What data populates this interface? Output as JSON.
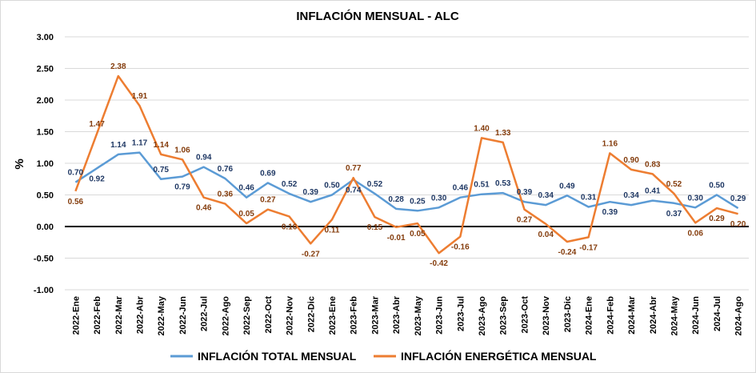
{
  "chart_data": {
    "type": "line",
    "title": "INFLACIÓN MENSUAL - ALC",
    "ylabel": "%",
    "xlabel": "",
    "ylim": [
      -1.0,
      3.0
    ],
    "yticks": [
      "-1.00",
      "-0.50",
      "0.00",
      "0.50",
      "1.00",
      "1.50",
      "2.00",
      "2.50",
      "3.00"
    ],
    "grid": true,
    "legend": "bottom",
    "categories": [
      "2022-Ene",
      "2022-Feb",
      "2022-Mar",
      "2022-Abr",
      "2022-May",
      "2022-Jun",
      "2022-Jul",
      "2022-Ago",
      "2022-Sep",
      "2022-Oct",
      "2022-Nov",
      "2022-Dic",
      "2023-Ene",
      "2023-Feb",
      "2023-Mar",
      "2023-Abr",
      "2023-May",
      "2023-Jun",
      "2023-Jul",
      "2023-Ago",
      "2023-Sep",
      "2023-Oct",
      "2023-Nov",
      "2023-Dic",
      "2024-Ene",
      "2024-Feb",
      "2024-Mar",
      "2024-Abr",
      "2024-May",
      "2024-Jun",
      "2024-Jul",
      "2024-Ago"
    ],
    "series": [
      {
        "name": "INFLACIÓN TOTAL MENSUAL",
        "color": "#5b9bd5",
        "label_color": "#1f3864",
        "values": [
          0.7,
          0.92,
          1.14,
          1.17,
          0.75,
          0.79,
          0.94,
          0.76,
          0.46,
          0.69,
          0.52,
          0.39,
          0.5,
          0.74,
          0.52,
          0.28,
          0.25,
          0.3,
          0.46,
          0.51,
          0.53,
          0.39,
          0.34,
          0.49,
          0.31,
          0.39,
          0.34,
          0.41,
          0.37,
          0.3,
          0.5,
          0.29
        ],
        "labels": [
          "0.70",
          "0.92",
          "1.14",
          "1.17",
          "0.75",
          "0.79",
          "0.94",
          "0.76",
          "0.46",
          "0.69",
          "0.52",
          "0.39",
          "0.50",
          "0.74",
          "0.52",
          "0.28",
          "0.25",
          "0.30",
          "0.46",
          "0.51",
          "0.53",
          "0.39",
          "0.34",
          "0.49",
          "0.31",
          "0.39",
          "0.34",
          "0.41",
          "0.37",
          "0.30",
          "0.50",
          "0.29"
        ],
        "label_pos": [
          "above",
          "below",
          "above",
          "above",
          "above",
          "below",
          "above",
          "above",
          "above",
          "above",
          "above",
          "above",
          "above",
          "below",
          "above",
          "above",
          "above",
          "above",
          "above",
          "above",
          "above",
          "above",
          "above",
          "above",
          "above",
          "below",
          "above",
          "above",
          "below",
          "above",
          "above",
          "above"
        ]
      },
      {
        "name": "INFLACIÓN ENERGÉTICA MENSUAL",
        "color": "#ed7d31",
        "label_color": "#843c0c",
        "values": [
          0.56,
          1.47,
          2.38,
          1.91,
          1.14,
          1.06,
          0.46,
          0.36,
          0.05,
          0.27,
          0.16,
          -0.27,
          0.11,
          0.77,
          0.15,
          -0.01,
          0.05,
          -0.42,
          -0.16,
          1.4,
          1.33,
          0.27,
          0.04,
          -0.24,
          -0.17,
          1.16,
          0.9,
          0.83,
          0.52,
          0.06,
          0.29,
          0.2
        ],
        "labels": [
          "0.56",
          "1.47",
          "2.38",
          "1.91",
          "1.14",
          "1.06",
          "0.46",
          "0.36",
          "0.05",
          "0.27",
          "0.16",
          "-0.27",
          "0.11",
          "0.77",
          "0.15",
          "-0.01",
          "0.05",
          "-0.42",
          "-0.16",
          "1.40",
          "1.33",
          "0.27",
          "0.04",
          "-0.24",
          "-0.17",
          "1.16",
          "0.90",
          "0.83",
          "0.52",
          "0.06",
          "0.29",
          "0.20"
        ],
        "label_pos": [
          "below",
          "above",
          "above",
          "above",
          "above",
          "above",
          "below",
          "above",
          "above",
          "above",
          "below",
          "below",
          "below",
          "above",
          "below",
          "below",
          "below",
          "below",
          "below",
          "above",
          "above",
          "below",
          "below",
          "below",
          "below",
          "above",
          "above",
          "above",
          "above",
          "below",
          "below",
          "below"
        ]
      }
    ]
  }
}
